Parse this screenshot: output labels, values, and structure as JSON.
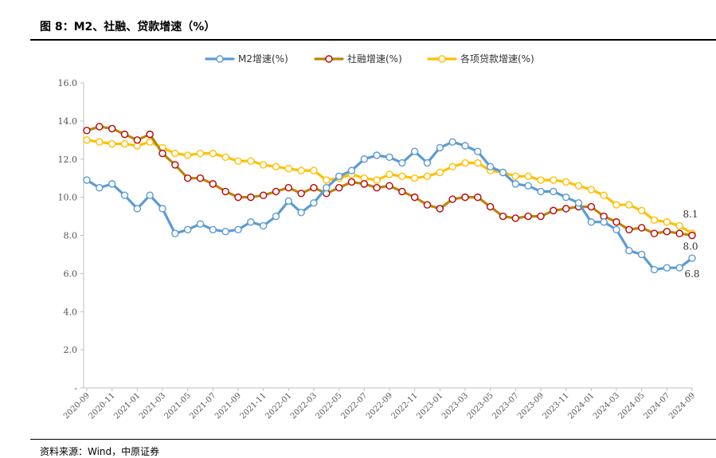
{
  "header": {
    "title": "图 8：M2、社融、贷款增速（%）"
  },
  "footer": {
    "source": "资料来源：Wind，中原证券"
  },
  "chart_data": {
    "type": "line",
    "title": "图 8：M2、社融、贷款增速（%）",
    "xlabel": "",
    "ylabel": "",
    "ylim": [
      0,
      16
    ],
    "yticks": [
      0,
      2,
      4,
      6,
      8,
      10,
      12,
      14,
      16
    ],
    "ytick_labels": [
      "-",
      "2.0",
      "4.0",
      "6.0",
      "8.0",
      "10.0",
      "12.0",
      "14.0",
      "16.0"
    ],
    "grid": false,
    "legend_position": "top-center",
    "x": [
      "2020-09",
      "2020-10",
      "2020-11",
      "2020-12",
      "2021-01",
      "2021-02",
      "2021-03",
      "2021-04",
      "2021-05",
      "2021-06",
      "2021-07",
      "2021-08",
      "2021-09",
      "2021-10",
      "2021-11",
      "2021-12",
      "2022-01",
      "2022-02",
      "2022-03",
      "2022-04",
      "2022-05",
      "2022-06",
      "2022-07",
      "2022-08",
      "2022-09",
      "2022-10",
      "2022-11",
      "2022-12",
      "2023-01",
      "2023-02",
      "2023-03",
      "2023-04",
      "2023-05",
      "2023-06",
      "2023-07",
      "2023-08",
      "2023-09",
      "2023-10",
      "2023-11",
      "2023-12",
      "2024-01",
      "2024-02",
      "2024-03",
      "2024-04",
      "2024-05",
      "2024-06",
      "2024-07",
      "2024-08",
      "2024-09"
    ],
    "xtick_labels": [
      "2020-09",
      "2020-11",
      "2021-01",
      "2021-03",
      "2021-05",
      "2021-07",
      "2021-09",
      "2021-11",
      "2022-01",
      "2022-03",
      "2022-05",
      "2022-07",
      "2022-09",
      "2022-11",
      "2023-01",
      "2023-03",
      "2023-05",
      "2023-07",
      "2023-09",
      "2023-11",
      "2024-01",
      "2024-03",
      "2024-05",
      "2024-07",
      "2024-09"
    ],
    "series": [
      {
        "name": "M2增速(%)",
        "color": "#5B9BD5",
        "end_label": "6.8",
        "values": [
          10.9,
          10.5,
          10.7,
          10.1,
          9.4,
          10.1,
          9.4,
          8.1,
          8.3,
          8.6,
          8.3,
          8.2,
          8.3,
          8.7,
          8.5,
          9.0,
          9.8,
          9.2,
          9.7,
          10.5,
          11.1,
          11.4,
          12.0,
          12.2,
          12.1,
          11.8,
          12.4,
          11.8,
          12.6,
          12.9,
          12.7,
          12.4,
          11.6,
          11.3,
          10.7,
          10.6,
          10.3,
          10.3,
          10.0,
          9.7,
          8.7,
          8.7,
          8.3,
          7.2,
          7.0,
          6.2,
          6.3,
          6.3,
          6.8
        ]
      },
      {
        "name": "社融增速(%)",
        "color": "#C00000",
        "line_color": "#B8860B",
        "end_label": "8.0",
        "values": [
          13.5,
          13.7,
          13.6,
          13.3,
          13.0,
          13.3,
          12.3,
          11.7,
          11.0,
          11.0,
          10.7,
          10.3,
          10.0,
          10.0,
          10.1,
          10.3,
          10.5,
          10.2,
          10.5,
          10.2,
          10.5,
          10.8,
          10.7,
          10.5,
          10.6,
          10.3,
          10.0,
          9.6,
          9.4,
          9.9,
          10.0,
          10.0,
          9.5,
          9.0,
          8.9,
          9.0,
          9.0,
          9.3,
          9.4,
          9.5,
          9.5,
          9.0,
          8.7,
          8.3,
          8.4,
          8.1,
          8.2,
          8.1,
          8.0
        ]
      },
      {
        "name": "各项贷款增速(%)",
        "color": "#FFC000",
        "end_label": "8.1",
        "values": [
          13.0,
          12.9,
          12.8,
          12.8,
          12.7,
          12.9,
          12.6,
          12.3,
          12.2,
          12.3,
          12.3,
          12.1,
          11.9,
          11.9,
          11.7,
          11.6,
          11.5,
          11.4,
          11.4,
          10.9,
          11.0,
          11.2,
          11.0,
          10.9,
          11.2,
          11.1,
          11.0,
          11.1,
          11.3,
          11.6,
          11.8,
          11.8,
          11.4,
          11.3,
          11.1,
          11.1,
          10.9,
          10.9,
          10.8,
          10.6,
          10.4,
          10.1,
          9.6,
          9.6,
          9.3,
          8.8,
          8.7,
          8.5,
          8.1
        ]
      }
    ]
  }
}
